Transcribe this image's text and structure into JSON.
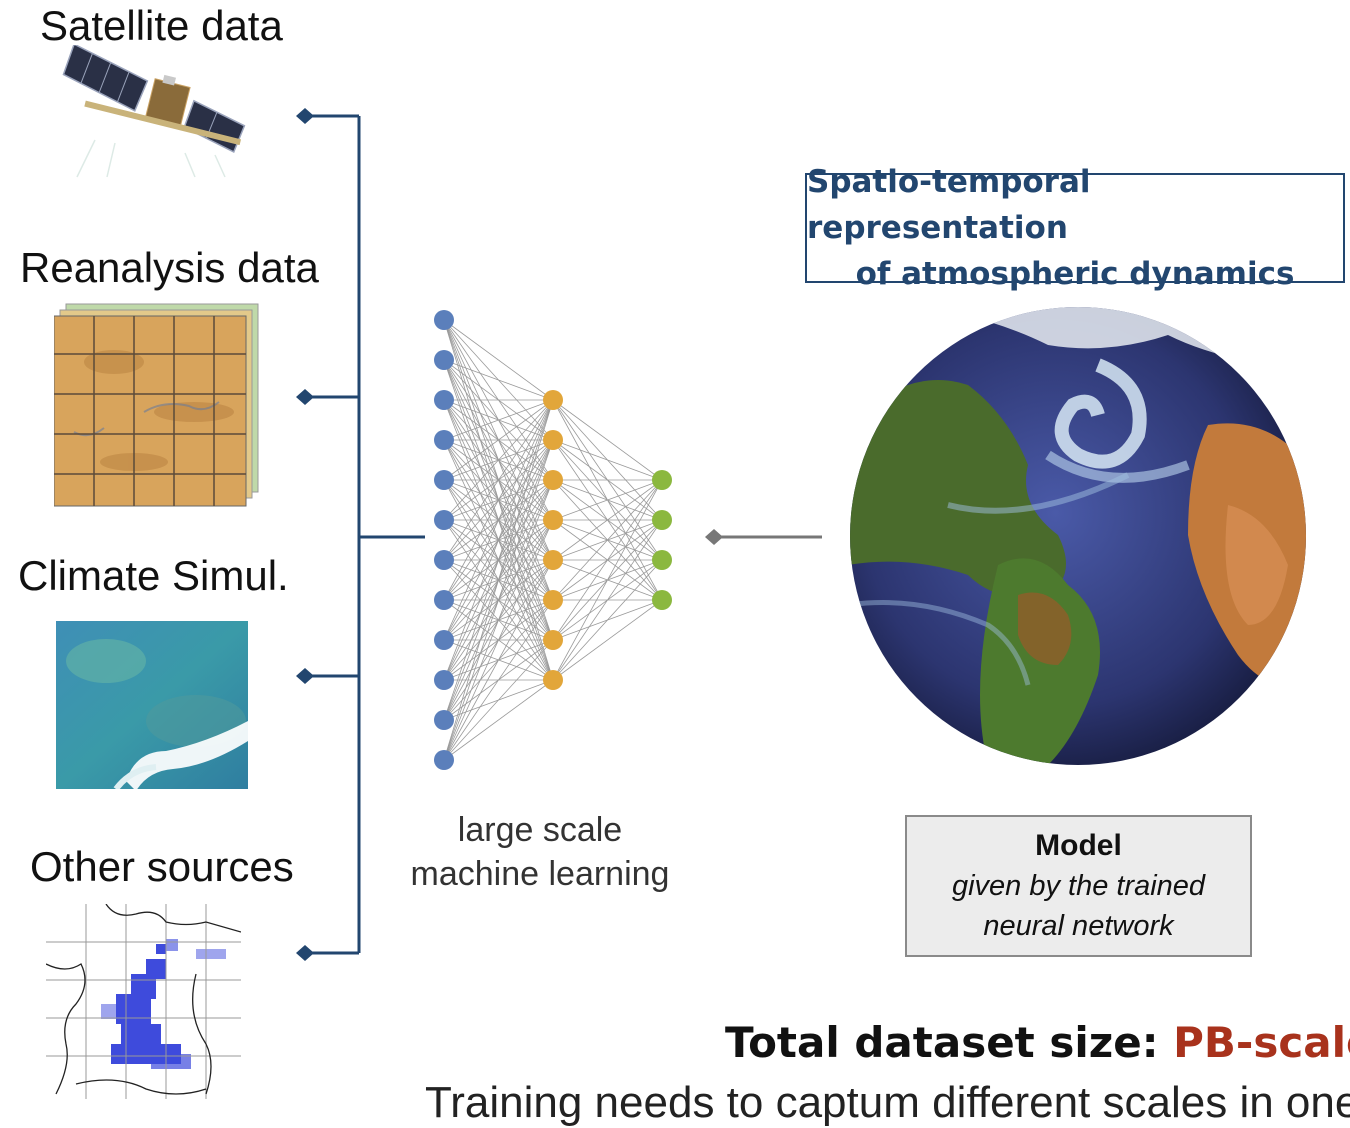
{
  "sources": [
    {
      "label": "Satellite data",
      "icon": "satellite-icon"
    },
    {
      "label": "Reanalysis data",
      "icon": "reanalysis-map-icon"
    },
    {
      "label": "Climate Simul.",
      "icon": "climate-simulation-icon"
    },
    {
      "label": "Other sources",
      "icon": "precipitation-map-icon"
    }
  ],
  "network": {
    "caption_line1": "large scale",
    "caption_line2": "machine learning",
    "layers": [
      12,
      8,
      4
    ],
    "layer_colors": [
      "#5b7fbb",
      "#e2a63a",
      "#8bb83f"
    ]
  },
  "representation": {
    "title_line1": "Spatio-temporal representation",
    "title_line2": "of atmospheric dynamics",
    "title_color": "#22466f"
  },
  "model": {
    "title": "Model",
    "subtitle_line1": "given by the trained",
    "subtitle_line2": "neural network"
  },
  "footer": {
    "prefix": "Total dataset size: ",
    "highlight": "PB-scale",
    "highlight_color": "#a8321c",
    "cutoff_text": "Training needs to captum different scales in one"
  },
  "colors": {
    "connector": "#22466f",
    "arrow": "#777777"
  }
}
